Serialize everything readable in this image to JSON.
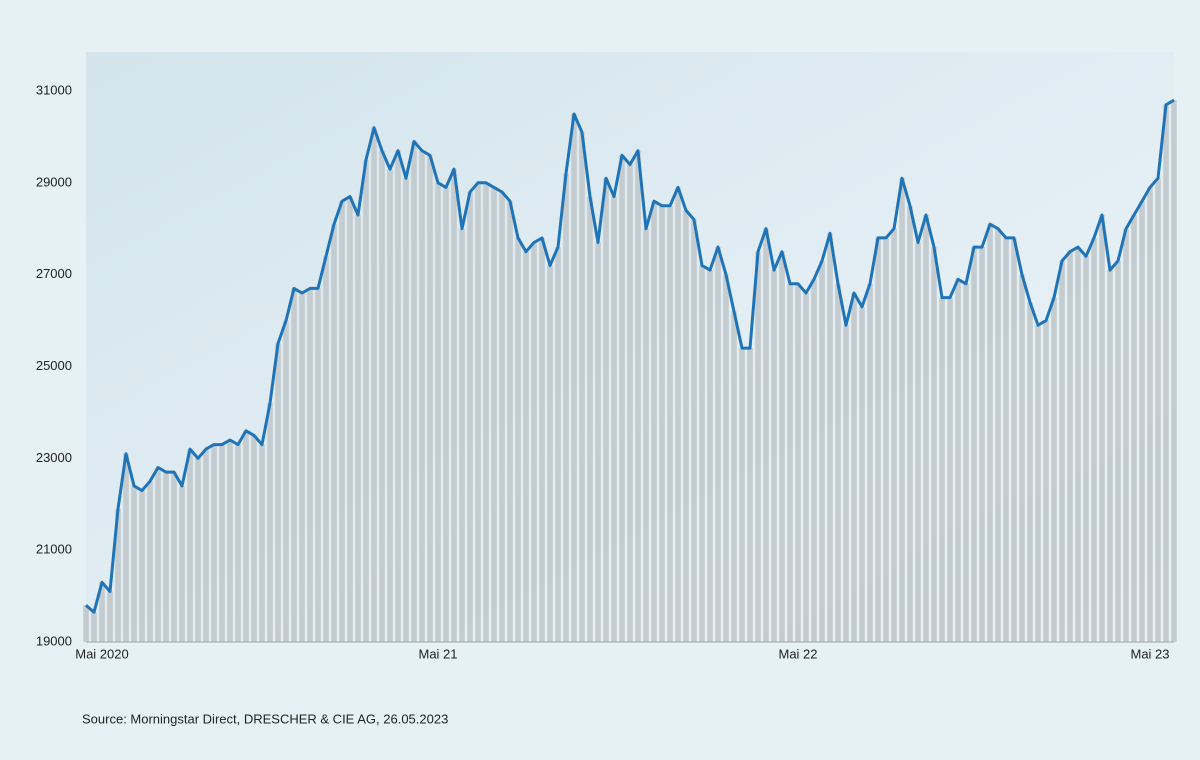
{
  "chart_data": {
    "type": "line",
    "categories": [
      null,
      null,
      "Mai 2020",
      null,
      null,
      null,
      null,
      null,
      null,
      null,
      null,
      null,
      null,
      null,
      null,
      null,
      null,
      null,
      null,
      null,
      null,
      null,
      null,
      null,
      null,
      null,
      null,
      null,
      null,
      null,
      null,
      null,
      null,
      null,
      null,
      null,
      null,
      null,
      null,
      null,
      null,
      null,
      null,
      null,
      "Mai 21",
      null,
      null,
      null,
      null,
      null,
      null,
      null,
      null,
      null,
      null,
      null,
      null,
      null,
      null,
      null,
      null,
      null,
      null,
      null,
      null,
      null,
      null,
      null,
      null,
      null,
      null,
      null,
      null,
      null,
      null,
      null,
      null,
      null,
      null,
      null,
      null,
      null,
      null,
      null,
      null,
      null,
      null,
      null,
      null,
      "Mai 22",
      null,
      null,
      null,
      null,
      null,
      null,
      null,
      null,
      null,
      null,
      null,
      null,
      null,
      null,
      null,
      null,
      null,
      null,
      null,
      null,
      null,
      null,
      null,
      null,
      null,
      null,
      null,
      null,
      null,
      null,
      null,
      null,
      null,
      null,
      null,
      null,
      null,
      null,
      null,
      null,
      null,
      null,
      null,
      "Mai 23",
      null,
      null,
      null
    ],
    "values": [
      19800,
      19650,
      20300,
      20100,
      21900,
      23100,
      22400,
      22300,
      22500,
      22800,
      22700,
      22700,
      22400,
      23200,
      23000,
      23200,
      23300,
      23300,
      23400,
      23300,
      23600,
      23500,
      23300,
      24200,
      25500,
      26000,
      26700,
      26600,
      26700,
      26700,
      27400,
      28100,
      28600,
      28700,
      28300,
      29500,
      30200,
      29700,
      29300,
      29700,
      29100,
      29900,
      29700,
      29600,
      29000,
      28900,
      29300,
      28000,
      28800,
      29000,
      29000,
      28900,
      28800,
      28600,
      27800,
      27500,
      27700,
      27800,
      27200,
      27600,
      29200,
      30500,
      30100,
      28700,
      27700,
      29100,
      28700,
      29600,
      29400,
      29700,
      28000,
      28600,
      28500,
      28500,
      28900,
      28400,
      28200,
      27200,
      27100,
      27600,
      27000,
      26200,
      25400,
      25400,
      27500,
      28000,
      27100,
      27500,
      26800,
      26800,
      26600,
      26900,
      27300,
      27900,
      26800,
      25900,
      26600,
      26300,
      26800,
      27800,
      27800,
      28000,
      29100,
      28500,
      27700,
      28300,
      27600,
      26500,
      26500,
      26900,
      26800,
      27600,
      27600,
      28100,
      28000,
      27800,
      27800,
      27000,
      26400,
      25900,
      26000,
      26500,
      27300,
      27500,
      27600,
      27400,
      27800,
      28300,
      27100,
      27300,
      28000,
      28300,
      28600,
      28900,
      29100,
      30700,
      30800
    ],
    "color": "#1f74b8",
    "ylim": [
      19000,
      31600
    ],
    "yticks": [
      19000,
      21000,
      23000,
      25000,
      27000,
      29000,
      31000
    ],
    "source": "Source: Morningstar Direct, DRESCHER & CIE AG, 26.05.2023"
  }
}
